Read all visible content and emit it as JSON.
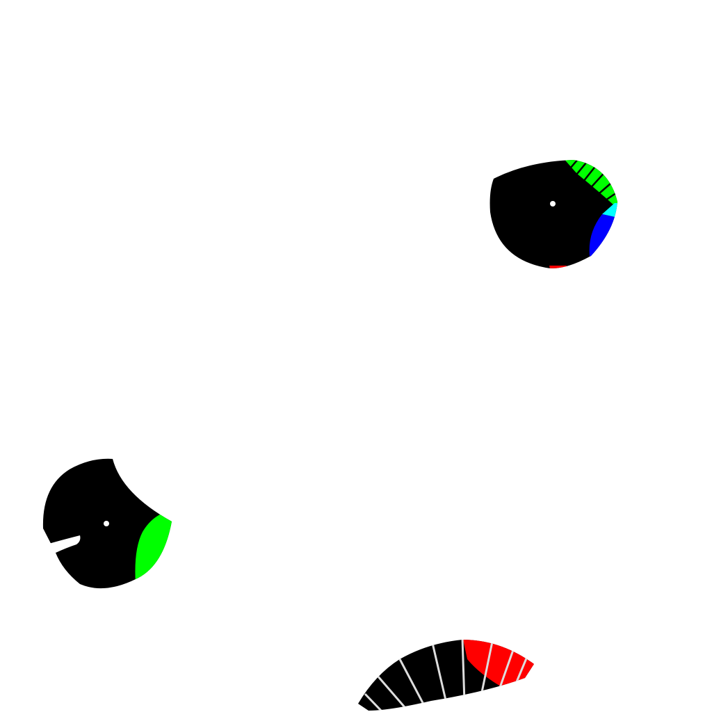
{
  "scene": {
    "background": "#ffffff",
    "colors": {
      "body": "#000000",
      "pupil": "#ffffff",
      "stripe_light": "#dddddd",
      "stripe_dark": "#000000",
      "green": "#00ff00",
      "blue": "#0000ff",
      "cyan": "#00ffff",
      "red": "#ff0000"
    },
    "objects": [
      {
        "name": "creature-top-right",
        "kind": "eye-blob",
        "accents": [
          "green-striped-patch",
          "cyan-sliver",
          "blue-patch",
          "red-sliver"
        ]
      },
      {
        "name": "creature-left",
        "kind": "eye-blob",
        "accents": [
          "green-patch",
          "white-notch"
        ]
      },
      {
        "name": "creature-bottom",
        "kind": "striped-fan",
        "accents": [
          "red-striped-patch"
        ]
      }
    ]
  }
}
